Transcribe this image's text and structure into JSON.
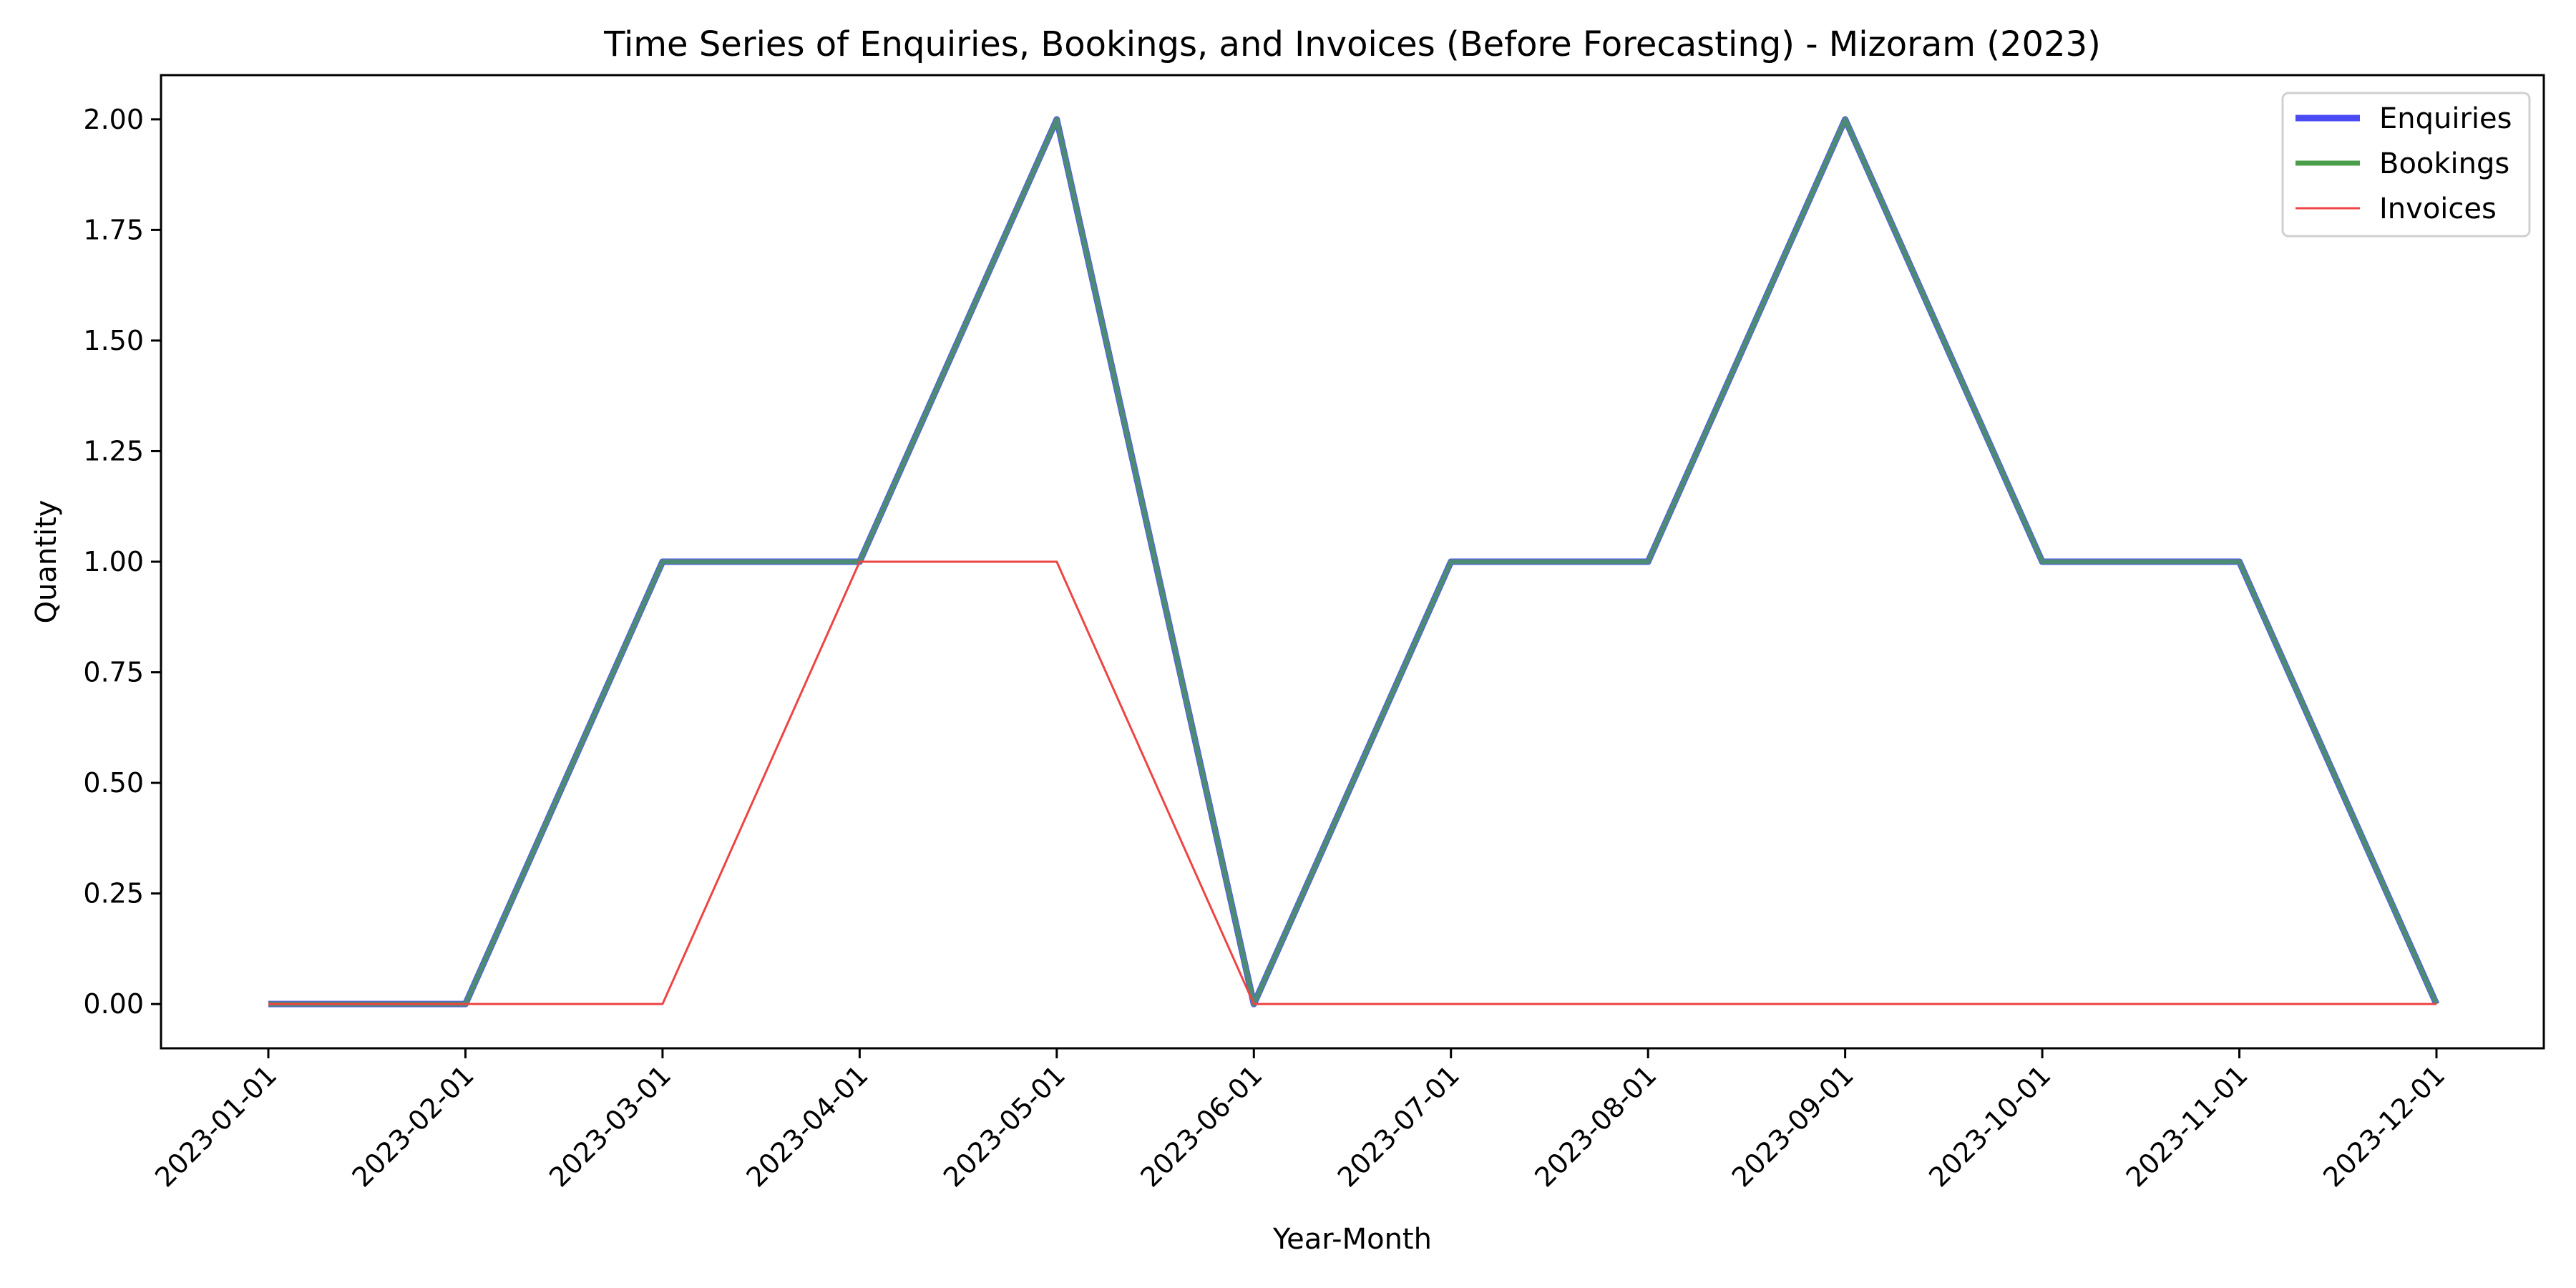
{
  "chart_data": {
    "type": "line",
    "title": "Time Series of Enquiries, Bookings, and Invoices (Before Forecasting) - Mizoram (2023)",
    "xlabel": "Year-Month",
    "ylabel": "Quantity",
    "categories": [
      "2023-01-01",
      "2023-02-01",
      "2023-03-01",
      "2023-04-01",
      "2023-05-01",
      "2023-06-01",
      "2023-07-01",
      "2023-08-01",
      "2023-09-01",
      "2023-10-01",
      "2023-11-01",
      "2023-12-01"
    ],
    "ylim": [
      -0.1,
      2.1
    ],
    "yticks": [
      "0.00",
      "0.25",
      "0.50",
      "0.75",
      "1.00",
      "1.25",
      "1.50",
      "1.75",
      "2.00"
    ],
    "grid": false,
    "legend_position": "top-right",
    "series": [
      {
        "name": "Enquiries",
        "color": "#4b4bf5",
        "values": [
          0,
          0,
          1,
          1,
          2,
          0,
          1,
          1,
          2,
          1,
          1,
          0
        ]
      },
      {
        "name": "Bookings",
        "color": "#4a9e4a",
        "values": [
          0,
          0,
          1,
          1,
          2,
          0,
          1,
          1,
          2,
          1,
          1,
          0
        ]
      },
      {
        "name": "Invoices",
        "color": "#ee4444",
        "values": [
          0,
          0,
          0,
          1,
          1,
          0,
          0,
          0,
          0,
          0,
          0,
          0
        ]
      }
    ]
  }
}
